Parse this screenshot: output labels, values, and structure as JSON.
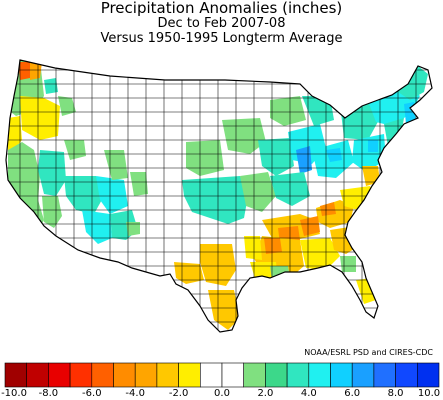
{
  "title": {
    "line1": "Precipitation Anomalies (inches)",
    "line2": "Dec to Feb 2007-08",
    "line3": "Versus 1950-1995 Longterm Average"
  },
  "credit": "NOAA/ESRL PSD and CIRES-CDC",
  "legend": {
    "colors": [
      "#a00000",
      "#c00000",
      "#e80000",
      "#ff3000",
      "#ff6000",
      "#ff8c00",
      "#ffa500",
      "#ffc800",
      "#ffee00",
      "#ffffff",
      "#ffffff",
      "#80e080",
      "#3cd88a",
      "#30e6c0",
      "#20f0f0",
      "#10d0ff",
      "#1aa0ff",
      "#2070ff",
      "#1048ff",
      "#0030f0"
    ],
    "tick_labels": [
      "-10.0",
      "-8.0",
      "-6.0",
      "-4.0",
      "-2.0",
      "0.0",
      "2.0",
      "4.0",
      "6.0",
      "8.0",
      "10.0"
    ]
  },
  "palette": {
    "strong_dry": "#ff8c00",
    "dry": "#ffc800",
    "slight_dry": "#ffee00",
    "wet_1": "#80e080",
    "wet_2": "#30e6c0",
    "wet_3": "#20f0f0",
    "wet_4": "#10d0ff",
    "wet_5": "#1aa0ff"
  }
}
